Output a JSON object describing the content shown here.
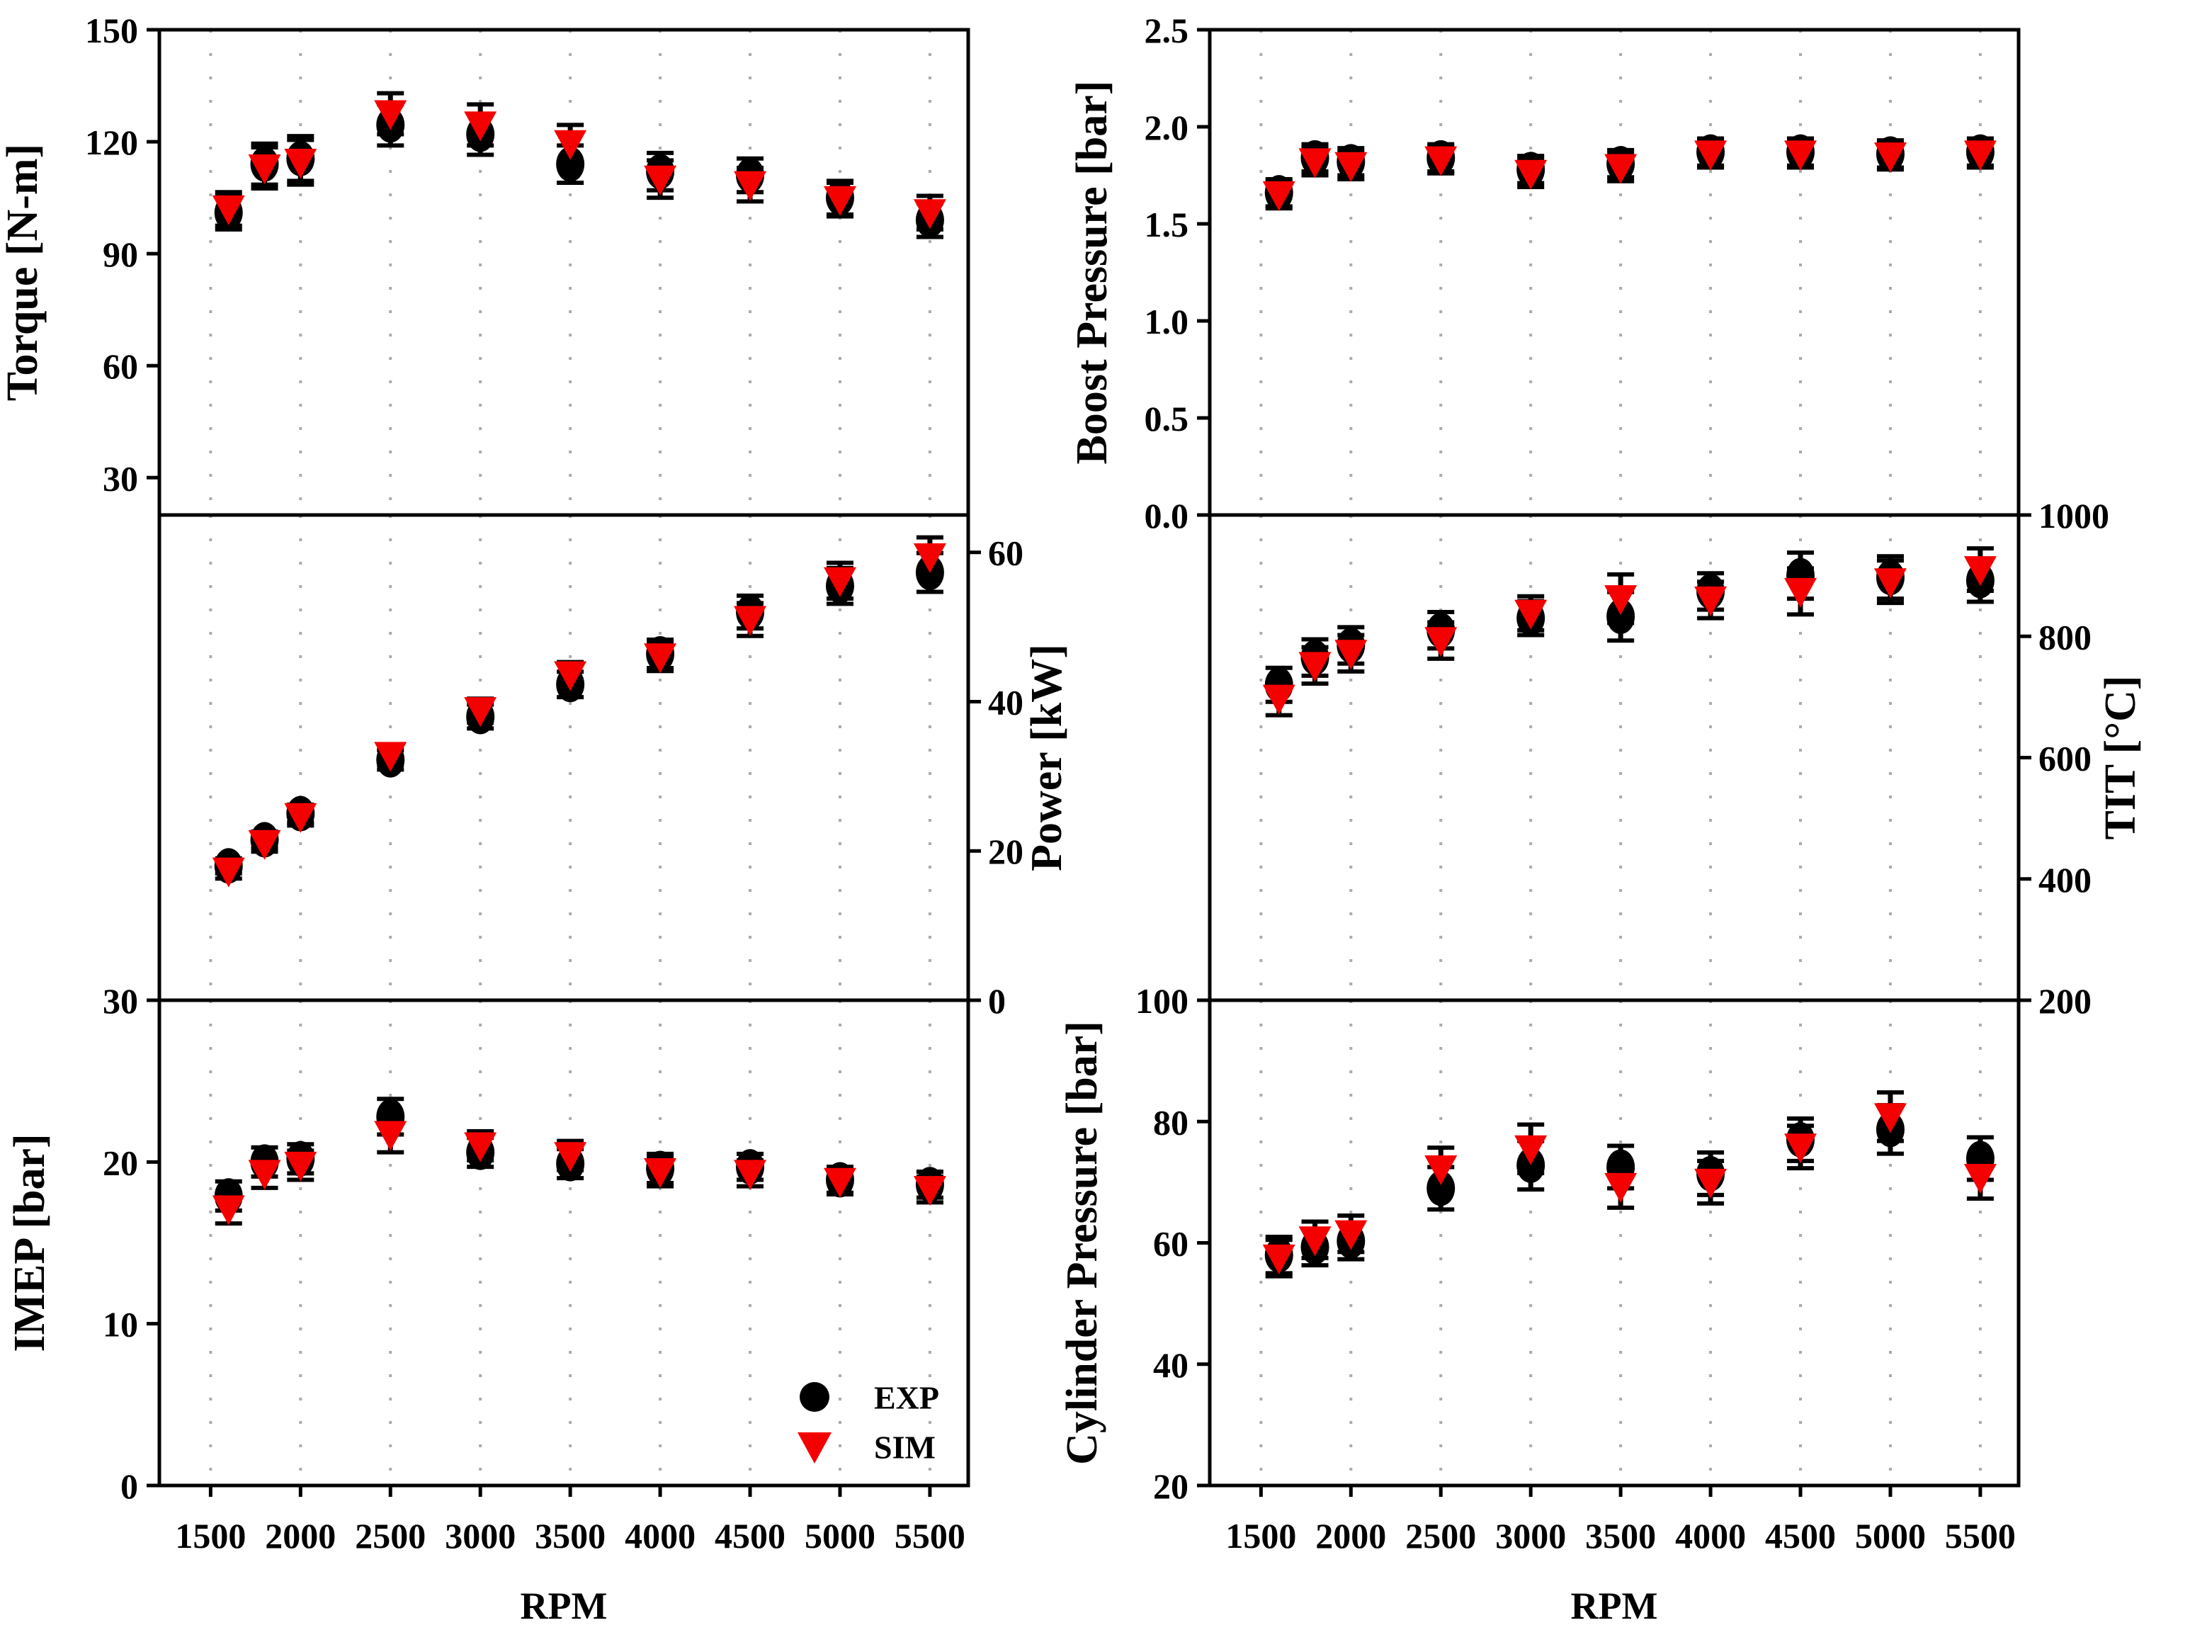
{
  "figure": {
    "background": "#FFFFFF",
    "colors": {
      "exp": "#000000",
      "sim": "#F40000",
      "grid": "#ABABAB",
      "frame": "#000000"
    },
    "xlabel": "RPM",
    "x_tick_labels": [
      "1500",
      "2000",
      "2500",
      "3000",
      "3500",
      "4000",
      "4500",
      "5000",
      "5500"
    ],
    "x_gridlines": [
      1500,
      2000,
      2500,
      3000,
      3500,
      4000,
      4500,
      5000,
      5500
    ],
    "xlim": [
      1215,
      5713
    ],
    "grid_style": "vertical-dotted",
    "legend": {
      "position": "lower-right-of-imep-panel",
      "entries": [
        {
          "label": "EXP",
          "marker": "filled-circle",
          "color": "#000000"
        },
        {
          "label": "SIM",
          "marker": "down-triangle",
          "color": "#F40000"
        }
      ]
    }
  },
  "chart_data": [
    {
      "key": "torque",
      "type": "scatter",
      "ylabel": "Torque [N-m]",
      "ylabel_side": "left",
      "ylim": [
        20,
        150
      ],
      "yticks": [
        30,
        60,
        90,
        120,
        150
      ],
      "ytick_labels": [
        "30",
        "60",
        "90",
        "120",
        "150"
      ],
      "x_rpm": [
        1600,
        1800,
        2000,
        2500,
        3000,
        3500,
        4000,
        4500,
        5000,
        5500
      ],
      "series": [
        {
          "name": "EXP",
          "values": [
            101,
            114,
            115.5,
            124.5,
            122,
            114,
            112,
            111,
            105,
            99
          ]
        },
        {
          "name": "SIM",
          "values": [
            102,
            113,
            114.5,
            127.5,
            124.5,
            119.5,
            110,
            108.5,
            104.5,
            101
          ]
        }
      ],
      "error": [
        4.5,
        5.5,
        6,
        5.5,
        5.5,
        5,
        5,
        4.5,
        4.5,
        4.5
      ]
    },
    {
      "key": "boost-pressure",
      "type": "scatter",
      "ylabel": "Boost Pressure [bar]",
      "ylabel_side": "left",
      "ylim": [
        0,
        2.5
      ],
      "yticks": [
        0.0,
        0.5,
        1.0,
        1.5,
        2.0,
        2.5
      ],
      "ytick_labels": [
        "0.0",
        "0.5",
        "1.0",
        "1.5",
        "2.0",
        "2.5"
      ],
      "x_rpm": [
        1600,
        1800,
        2000,
        2500,
        3000,
        3500,
        4000,
        4500,
        5000,
        5500
      ],
      "series": [
        {
          "name": "EXP",
          "values": [
            1.66,
            1.84,
            1.82,
            1.84,
            1.78,
            1.81,
            1.87,
            1.87,
            1.86,
            1.87
          ]
        },
        {
          "name": "SIM",
          "values": [
            1.65,
            1.82,
            1.8,
            1.83,
            1.76,
            1.79,
            1.86,
            1.86,
            1.85,
            1.86
          ]
        }
      ],
      "error": [
        0.07,
        0.07,
        0.07,
        0.07,
        0.07,
        0.07,
        0.07,
        0.07,
        0.07,
        0.07
      ]
    },
    {
      "key": "power",
      "type": "scatter",
      "ylabel": "Power [kW]",
      "ylabel_side": "right",
      "ylim": [
        0,
        65
      ],
      "yticks": [
        0,
        20,
        40,
        60
      ],
      "ytick_labels": [
        "0",
        "20",
        "40",
        "60"
      ],
      "x_rpm": [
        1600,
        1800,
        2000,
        2500,
        3000,
        3500,
        4000,
        4500,
        5000,
        5500
      ],
      "series": [
        {
          "name": "EXP",
          "values": [
            18,
            21.5,
            25,
            32.2,
            38,
            42.3,
            46.4,
            52,
            55.5,
            57.3
          ]
        },
        {
          "name": "SIM",
          "values": [
            17.3,
            21,
            24.6,
            32.8,
            38.8,
            43.6,
            46,
            51,
            56.2,
            59.4
          ]
        }
      ],
      "error": [
        1.0,
        1.1,
        1.2,
        1.3,
        1.6,
        1.7,
        1.9,
        2.2,
        2.4,
        2.6
      ]
    },
    {
      "key": "tit",
      "type": "scatter",
      "ylabel": "TIT [°C]",
      "ylabel_side": "right",
      "ylim": [
        200,
        1000
      ],
      "yticks": [
        200,
        400,
        600,
        800,
        1000
      ],
      "ytick_labels": [
        "200",
        "400",
        "600",
        "800",
        "1000"
      ],
      "x_rpm": [
        1600,
        1800,
        2000,
        2500,
        3000,
        3500,
        4000,
        4500,
        5000,
        5500
      ],
      "series": [
        {
          "name": "EXP",
          "values": [
            720,
            765,
            785,
            810,
            830,
            833,
            874,
            900,
            897,
            892
          ]
        },
        {
          "name": "SIM",
          "values": [
            698,
            752,
            772,
            793,
            838,
            862,
            860,
            874,
            890,
            910
          ]
        }
      ],
      "error": [
        28,
        30,
        30,
        30,
        28,
        40,
        30,
        38,
        35,
        35
      ]
    },
    {
      "key": "imep",
      "type": "scatter",
      "ylabel": "IMEP [bar]",
      "ylabel_side": "left",
      "ylim": [
        0,
        30
      ],
      "yticks": [
        0,
        10,
        20,
        30
      ],
      "ytick_labels": [
        "0",
        "10",
        "20",
        "30"
      ],
      "x_rpm": [
        1600,
        1800,
        2000,
        2500,
        3000,
        3500,
        4000,
        4500,
        5000,
        5500
      ],
      "series": [
        {
          "name": "EXP",
          "values": [
            17.9,
            20.0,
            20.2,
            22.8,
            20.6,
            19.9,
            19.6,
            19.7,
            18.9,
            18.6
          ]
        },
        {
          "name": "SIM",
          "values": [
            17.1,
            19.3,
            19.8,
            21.7,
            21.0,
            20.4,
            19.4,
            19.3,
            18.8,
            18.3
          ]
        }
      ],
      "error": [
        0.9,
        0.9,
        0.9,
        1.1,
        0.9,
        0.9,
        0.9,
        0.8,
        0.8,
        0.8
      ]
    },
    {
      "key": "cylinder-pressure",
      "type": "scatter",
      "ylabel": "Cylinder Pressure [bar]",
      "ylabel_side": "left",
      "ylim": [
        20,
        100
      ],
      "yticks": [
        20,
        40,
        60,
        80,
        100
      ],
      "ytick_labels": [
        "20",
        "40",
        "60",
        "80",
        "100"
      ],
      "x_rpm": [
        1600,
        1800,
        2000,
        2500,
        3000,
        3500,
        4000,
        4500,
        5000,
        5500
      ],
      "series": [
        {
          "name": "EXP",
          "values": [
            58,
            59.3,
            60.3,
            69,
            72.8,
            72.5,
            71.4,
            77,
            78.7,
            73.9
          ]
        },
        {
          "name": "SIM",
          "values": [
            57.5,
            60.5,
            61.5,
            72.2,
            75.5,
            69.3,
            70,
            75.8,
            80.8,
            70.8
          ]
        }
      ],
      "error": [
        3,
        3,
        3,
        3.5,
        4,
        3.5,
        3.5,
        3.5,
        4,
        3.5
      ]
    }
  ]
}
